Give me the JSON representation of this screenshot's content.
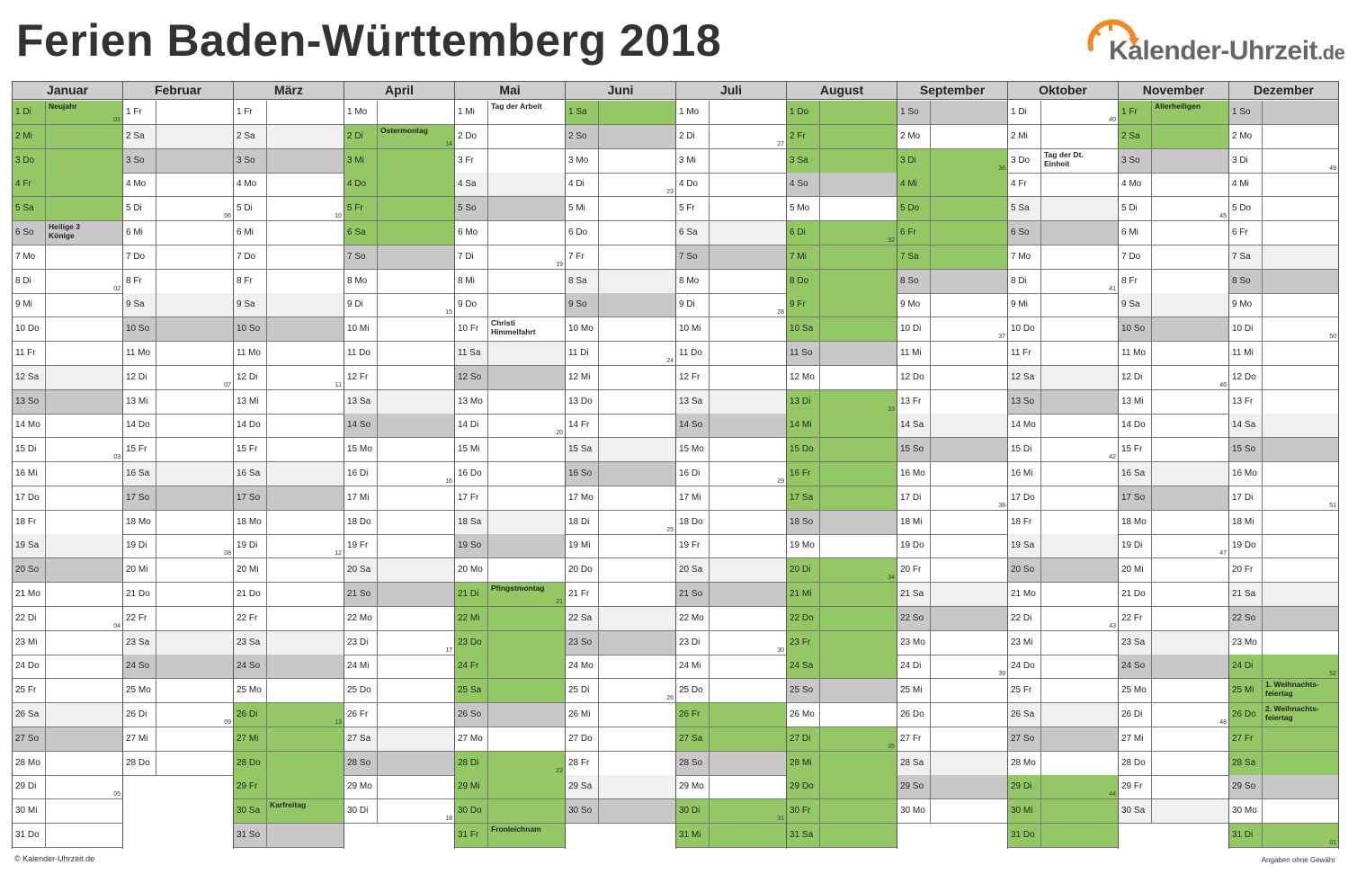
{
  "title": "Ferien Baden-Württemberg 2018",
  "logo": {
    "brand": "Kalender-Uhrzeit",
    "tld": ".de",
    "icon": "clock-arrow-icon",
    "accent": "#f08a24"
  },
  "colors": {
    "holiday": "#94c864",
    "saturday": "#f0f0f0",
    "sunday": "#c8c8c8",
    "header": "#cfcfcf"
  },
  "footer": {
    "left": "© Kalender-Uhrzeit.de",
    "right": "Angaben ohne Gewähr"
  },
  "months": [
    {
      "name": "Januar",
      "days": 31,
      "start": 1,
      "ferien": [
        1,
        2,
        3,
        4,
        5
      ],
      "notes": {
        "1": "Neujahr",
        "6": "Heilige 3\nKönige"
      },
      "weeks": {
        "1": "01",
        "8": "02",
        "15": "03",
        "22": "04",
        "29": "05"
      }
    },
    {
      "name": "Februar",
      "days": 28,
      "start": 4,
      "ferien": [],
      "notes": {},
      "weeks": {
        "5": "06",
        "12": "07",
        "19": "08",
        "26": "09"
      }
    },
    {
      "name": "März",
      "days": 31,
      "start": 4,
      "ferien": [
        26,
        27,
        28,
        29,
        30
      ],
      "notes": {
        "30": "Karfreitag"
      },
      "weeks": {
        "5": "10",
        "12": "11",
        "19": "12",
        "26": "13"
      }
    },
    {
      "name": "April",
      "days": 30,
      "start": 0,
      "ferien": [
        2,
        3,
        4,
        5,
        6
      ],
      "notes": {
        "2": "Ostermontag"
      },
      "weeks": {
        "2": "14",
        "9": "15",
        "16": "16",
        "23": "17",
        "30": "18"
      }
    },
    {
      "name": "Mai",
      "days": 31,
      "start": 2,
      "ferien": [
        21,
        22,
        23,
        24,
        25,
        28,
        29,
        30,
        31
      ],
      "notes": {
        "1": "Tag der Arbeit",
        "10": "Christi\nHimmelfahrt",
        "21": "Pfingstmontag",
        "31": "Fronleichnam"
      },
      "weeks": {
        "7": "19",
        "14": "20",
        "21": "21",
        "28": "22"
      }
    },
    {
      "name": "Juni",
      "days": 30,
      "start": 5,
      "ferien": [
        1
      ],
      "notes": {},
      "weeks": {
        "4": "23",
        "11": "24",
        "18": "25",
        "25": "26"
      }
    },
    {
      "name": "Juli",
      "days": 31,
      "start": 0,
      "ferien": [
        26,
        27,
        30,
        31
      ],
      "notes": {},
      "weeks": {
        "2": "27",
        "9": "28",
        "16": "29",
        "23": "30",
        "30": "31"
      }
    },
    {
      "name": "August",
      "days": 31,
      "start": 3,
      "ferien": [
        1,
        2,
        3,
        6,
        7,
        8,
        9,
        10,
        13,
        14,
        15,
        16,
        17,
        20,
        21,
        22,
        23,
        24,
        27,
        28,
        29,
        30,
        31
      ],
      "notes": {},
      "weeks": {
        "6": "32",
        "13": "33",
        "20": "34",
        "27": "35"
      }
    },
    {
      "name": "September",
      "days": 30,
      "start": 6,
      "ferien": [
        3,
        4,
        5,
        6,
        7
      ],
      "notes": {},
      "weeks": {
        "3": "36",
        "10": "37",
        "17": "38",
        "24": "39"
      }
    },
    {
      "name": "Oktober",
      "days": 31,
      "start": 1,
      "ferien": [
        29,
        30,
        31
      ],
      "notes": {
        "3": "Tag der Dt.\nEinheit"
      },
      "weeks": {
        "1": "40",
        "8": "41",
        "15": "42",
        "22": "43",
        "29": "44"
      }
    },
    {
      "name": "November",
      "days": 30,
      "start": 4,
      "ferien": [
        1,
        2
      ],
      "notes": {
        "1": "Allerheiligen"
      },
      "weeks": {
        "5": "45",
        "12": "46",
        "19": "47",
        "26": "48"
      }
    },
    {
      "name": "Dezember",
      "days": 31,
      "start": 6,
      "ferien": [
        24,
        25,
        26,
        27,
        28,
        31
      ],
      "notes": {
        "25": "1. Weihnachts-\nfeiertag",
        "26": "2. Weihnachts-\nfeiertag"
      },
      "weeks": {
        "3": "49",
        "10": "50",
        "17": "51",
        "24": "52",
        "31": "01"
      }
    }
  ],
  "weekdays": [
    "Mo",
    "Di",
    "Mi",
    "Do",
    "Fr",
    "Sa",
    "So"
  ]
}
